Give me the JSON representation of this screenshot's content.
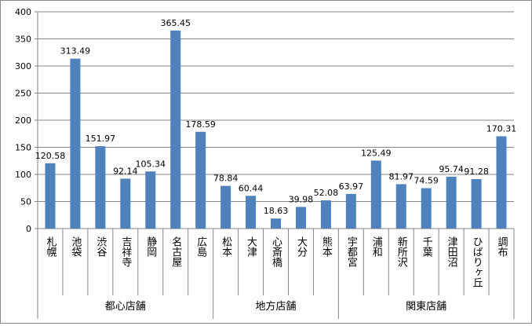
{
  "chart_data": {
    "type": "bar",
    "title": "",
    "xlabel": "",
    "ylabel": "",
    "ylim": [
      0,
      400
    ],
    "yticks": [
      0,
      50,
      100,
      150,
      200,
      250,
      300,
      350,
      400
    ],
    "grid": true,
    "legend": "none",
    "bar_color": "#4F81BD",
    "categories": [
      "札幌",
      "池袋",
      "渋谷",
      "吉祥寺",
      "静岡",
      "名古屋",
      "広島",
      "松本",
      "大津",
      "心斎橋",
      "大分",
      "熊本",
      "宇都宮",
      "浦和",
      "新所沢",
      "千葉",
      "津田沼",
      "ひばりヶ丘",
      "調布"
    ],
    "values": [
      120.58,
      313.49,
      151.97,
      92.14,
      105.34,
      365.45,
      178.59,
      78.84,
      60.44,
      18.63,
      39.98,
      52.08,
      63.97,
      125.49,
      81.97,
      74.59,
      95.74,
      91.28,
      170.31
    ],
    "value_labels": [
      "120.58",
      "313.49",
      "151.97",
      "92.14",
      "105.34",
      "365.45",
      "178.59",
      "78.84",
      "60.44",
      "18.63",
      "39.98",
      "52.08",
      "63.97",
      "125.49",
      "81.97",
      "74.59",
      "95.74",
      "91.28",
      "170.31"
    ],
    "groups": [
      {
        "label": "都心店舗",
        "start": 0,
        "count": 7
      },
      {
        "label": "地方店舗",
        "start": 7,
        "count": 5
      },
      {
        "label": "関東店舗",
        "start": 12,
        "count": 7
      }
    ]
  }
}
